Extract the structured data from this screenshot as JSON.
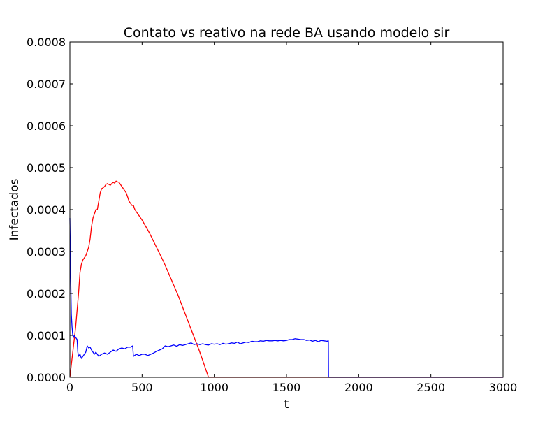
{
  "chart_data": {
    "type": "line",
    "title": "Contato vs reativo na rede BA usando modelo sir",
    "xlabel": "t",
    "ylabel": "Infectados",
    "xlim": [
      0,
      3000
    ],
    "ylim": [
      0,
      0.0008
    ],
    "xticks": [
      0,
      500,
      1000,
      1500,
      2000,
      2500,
      3000
    ],
    "xtick_labels": [
      "0",
      "500",
      "1000",
      "1500",
      "2000",
      "2500",
      "3000"
    ],
    "yticks": [
      0,
      0.0001,
      0.0002,
      0.0003,
      0.0004,
      0.0005,
      0.0006,
      0.0007,
      0.0008
    ],
    "ytick_labels": [
      "0.0000",
      "0.0001",
      "0.0002",
      "0.0003",
      "0.0004",
      "0.0005",
      "0.0006",
      "0.0007",
      "0.0008"
    ],
    "grid": false,
    "series": [
      {
        "color": "#ff0000",
        "points": [
          [
            0,
            0
          ],
          [
            10,
            3e-05
          ],
          [
            20,
            6e-05
          ],
          [
            30,
            9e-05
          ],
          [
            40,
            0.00012
          ],
          [
            50,
            0.00016
          ],
          [
            60,
            0.0002
          ],
          [
            70,
            0.00025
          ],
          [
            80,
            0.00027
          ],
          [
            90,
            0.00028
          ],
          [
            100,
            0.000285
          ],
          [
            110,
            0.00029
          ],
          [
            120,
            0.0003
          ],
          [
            130,
            0.00031
          ],
          [
            140,
            0.00033
          ],
          [
            150,
            0.00036
          ],
          [
            160,
            0.00038
          ],
          [
            170,
            0.00039
          ],
          [
            180,
            0.0004
          ],
          [
            190,
            0.0004
          ],
          [
            200,
            0.00042
          ],
          [
            210,
            0.00044
          ],
          [
            220,
            0.00045
          ],
          [
            230,
            0.000452
          ],
          [
            240,
            0.000455
          ],
          [
            250,
            0.00046
          ],
          [
            260,
            0.000462
          ],
          [
            270,
            0.00046
          ],
          [
            280,
            0.000458
          ],
          [
            290,
            0.000462
          ],
          [
            300,
            0.000465
          ],
          [
            310,
            0.000463
          ],
          [
            320,
            0.000468
          ],
          [
            330,
            0.000466
          ],
          [
            340,
            0.000465
          ],
          [
            350,
            0.00046
          ],
          [
            360,
            0.000455
          ],
          [
            370,
            0.00045
          ],
          [
            380,
            0.000445
          ],
          [
            390,
            0.00044
          ],
          [
            400,
            0.00043
          ],
          [
            410,
            0.00042
          ],
          [
            420,
            0.000415
          ],
          [
            430,
            0.00041
          ],
          [
            440,
            0.00041
          ],
          [
            450,
            0.0004
          ],
          [
            500,
            0.000375
          ],
          [
            550,
            0.000345
          ],
          [
            600,
            0.00031
          ],
          [
            650,
            0.000275
          ],
          [
            700,
            0.000235
          ],
          [
            750,
            0.000195
          ],
          [
            800,
            0.00015
          ],
          [
            850,
            0.000105
          ],
          [
            900,
            6e-05
          ],
          [
            940,
            2e-05
          ],
          [
            960,
            0
          ],
          [
            3000,
            0
          ]
        ]
      },
      {
        "color": "#0000ff",
        "points": [
          [
            0,
            0.00038
          ],
          [
            5,
            0.00025
          ],
          [
            10,
            0.00015
          ],
          [
            15,
            0.00012
          ],
          [
            20,
            0.0001
          ],
          [
            25,
            9.5e-05
          ],
          [
            30,
            0.0001
          ],
          [
            40,
            9.5e-05
          ],
          [
            50,
            9e-05
          ],
          [
            55,
            6e-05
          ],
          [
            60,
            5e-05
          ],
          [
            70,
            5.5e-05
          ],
          [
            80,
            4.5e-05
          ],
          [
            90,
            5e-05
          ],
          [
            100,
            5.5e-05
          ],
          [
            110,
            6e-05
          ],
          [
            120,
            7.5e-05
          ],
          [
            130,
            7e-05
          ],
          [
            140,
            7.2e-05
          ],
          [
            150,
            6.5e-05
          ],
          [
            160,
            6e-05
          ],
          [
            170,
            5.5e-05
          ],
          [
            180,
            6e-05
          ],
          [
            190,
            5.5e-05
          ],
          [
            200,
            5e-05
          ],
          [
            220,
            5.5e-05
          ],
          [
            240,
            5.8e-05
          ],
          [
            260,
            5.5e-05
          ],
          [
            280,
            6e-05
          ],
          [
            300,
            6.5e-05
          ],
          [
            320,
            6.2e-05
          ],
          [
            340,
            6.8e-05
          ],
          [
            360,
            7e-05
          ],
          [
            380,
            6.8e-05
          ],
          [
            400,
            7.2e-05
          ],
          [
            420,
            7.2e-05
          ],
          [
            435,
            7.5e-05
          ],
          [
            440,
            5e-05
          ],
          [
            460,
            5.5e-05
          ],
          [
            480,
            5.2e-05
          ],
          [
            500,
            5.5e-05
          ],
          [
            520,
            5.5e-05
          ],
          [
            540,
            5.2e-05
          ],
          [
            560,
            5.5e-05
          ],
          [
            580,
            5.8e-05
          ],
          [
            600,
            6.2e-05
          ],
          [
            620,
            6.5e-05
          ],
          [
            640,
            6.8e-05
          ],
          [
            660,
            7.5e-05
          ],
          [
            680,
            7.3e-05
          ],
          [
            700,
            7.5e-05
          ],
          [
            720,
            7.7e-05
          ],
          [
            740,
            7.4e-05
          ],
          [
            760,
            7.8e-05
          ],
          [
            780,
            7.6e-05
          ],
          [
            800,
            7.8e-05
          ],
          [
            820,
            8e-05
          ],
          [
            840,
            8.2e-05
          ],
          [
            860,
            7.8e-05
          ],
          [
            880,
            8e-05
          ],
          [
            900,
            7.8e-05
          ],
          [
            920,
            8e-05
          ],
          [
            940,
            7.8e-05
          ],
          [
            960,
            7.7e-05
          ],
          [
            980,
            8e-05
          ],
          [
            1000,
            7.9e-05
          ],
          [
            1020,
            8e-05
          ],
          [
            1040,
            7.8e-05
          ],
          [
            1060,
            8.1e-05
          ],
          [
            1080,
            7.9e-05
          ],
          [
            1100,
            8e-05
          ],
          [
            1120,
            8.2e-05
          ],
          [
            1140,
            8.1e-05
          ],
          [
            1160,
            8.4e-05
          ],
          [
            1180,
            8e-05
          ],
          [
            1200,
            8.2e-05
          ],
          [
            1220,
            8.4e-05
          ],
          [
            1240,
            8.3e-05
          ],
          [
            1260,
            8.6e-05
          ],
          [
            1280,
            8.5e-05
          ],
          [
            1300,
            8.5e-05
          ],
          [
            1320,
            8.7e-05
          ],
          [
            1340,
            8.6e-05
          ],
          [
            1360,
            8.8e-05
          ],
          [
            1380,
            8.7e-05
          ],
          [
            1400,
            8.7e-05
          ],
          [
            1420,
            8.8e-05
          ],
          [
            1440,
            8.7e-05
          ],
          [
            1460,
            8.8e-05
          ],
          [
            1480,
            8.7e-05
          ],
          [
            1500,
            8.8e-05
          ],
          [
            1520,
            9e-05
          ],
          [
            1540,
            9e-05
          ],
          [
            1560,
            9.2e-05
          ],
          [
            1580,
            9.1e-05
          ],
          [
            1600,
            9e-05
          ],
          [
            1620,
            9e-05
          ],
          [
            1640,
            8.8e-05
          ],
          [
            1660,
            8.9e-05
          ],
          [
            1680,
            8.6e-05
          ],
          [
            1700,
            8.8e-05
          ],
          [
            1720,
            8.5e-05
          ],
          [
            1740,
            8.8e-05
          ],
          [
            1760,
            8.7e-05
          ],
          [
            1780,
            8.6e-05
          ],
          [
            1790,
            8.7e-05
          ],
          [
            1791,
            0
          ],
          [
            3000,
            0
          ]
        ]
      }
    ]
  }
}
